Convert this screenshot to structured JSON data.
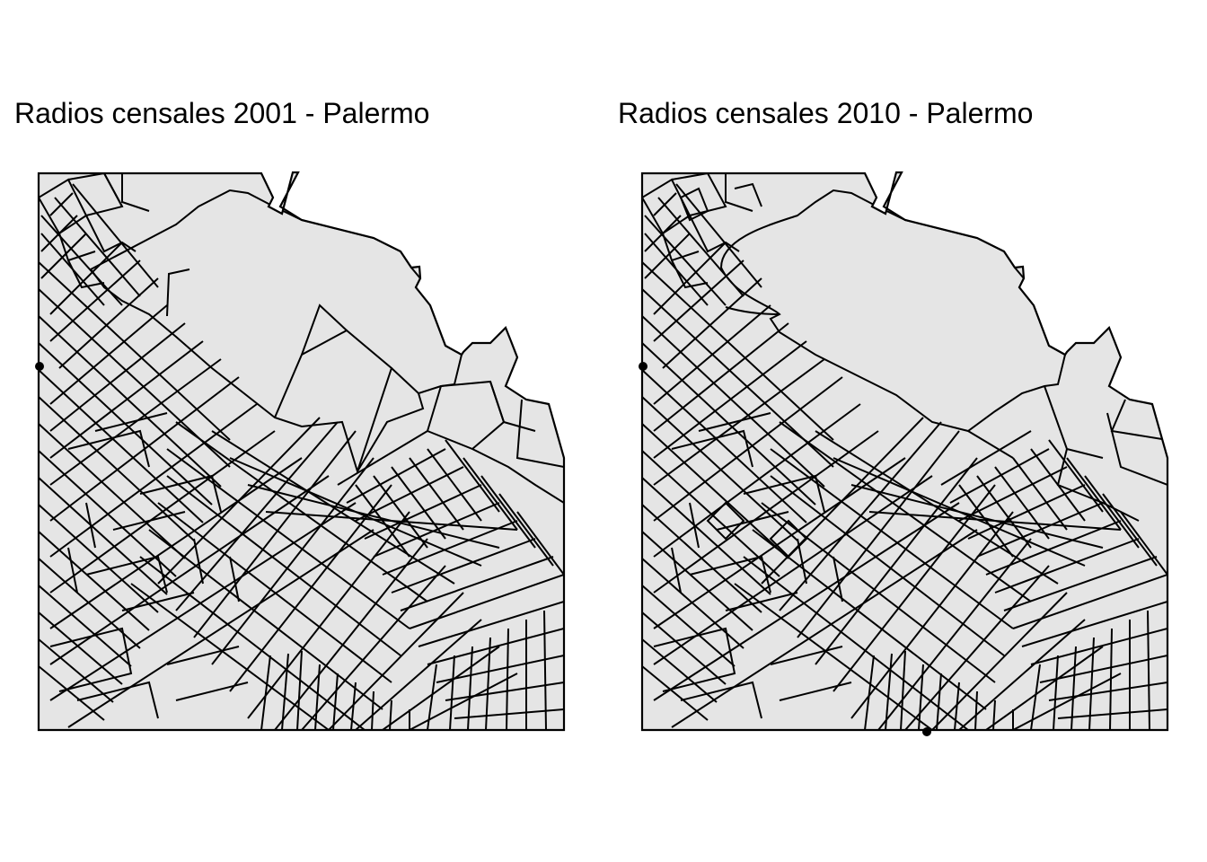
{
  "panels": [
    {
      "title": "Radios censales 2001 - Palermo"
    },
    {
      "title": "Radios censales 2010 - Palermo"
    }
  ],
  "colors": {
    "fill": "#e5e5e5",
    "stroke": "#000000",
    "background": "#ffffff"
  }
}
